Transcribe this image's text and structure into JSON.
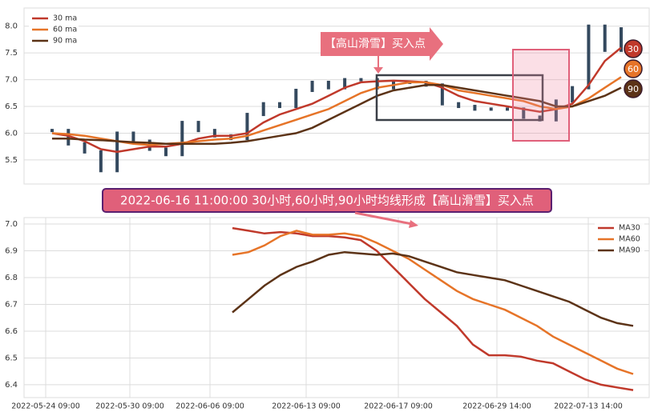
{
  "chart_data": [
    {
      "type": "line",
      "annotation": "【高山滑雪】买入点",
      "end_labels": [
        "30",
        "60",
        "90"
      ],
      "ylim": [
        5.05,
        8.34
      ],
      "yticks": [
        {
          "value": 8,
          "label": "8.0"
        },
        7.5,
        {
          "value": 7,
          "label": "7.0"
        },
        6.5,
        {
          "value": 6,
          "label": "6.0"
        },
        5.5
      ],
      "grid": true,
      "legend": "upper left",
      "price_color": "#34495e",
      "price": [
        6.05,
        5.8,
        5.65,
        5.3,
        6.0,
        5.85,
        5.7,
        5.6,
        6.2,
        6.05,
        5.95,
        5.9,
        6.35,
        6.55,
        6.5,
        6.8,
        6.95,
        6.85,
        7.0,
        7.0,
        6.85,
        6.95,
        6.95,
        6.9,
        6.55,
        6.5,
        6.45,
        6.45,
        6.45,
        6.3,
        6.25,
        6.6,
        6.85,
        8.0,
        7.55,
        7.95
      ],
      "series": [
        {
          "name": "30 ma",
          "color": "#c0392b",
          "values": [
            6.0,
            5.95,
            5.85,
            5.7,
            5.65,
            5.7,
            5.75,
            5.75,
            5.8,
            5.9,
            5.95,
            5.95,
            6.0,
            6.2,
            6.35,
            6.45,
            6.55,
            6.7,
            6.85,
            6.95,
            6.97,
            6.98,
            6.97,
            6.95,
            6.85,
            6.7,
            6.6,
            6.55,
            6.5,
            6.45,
            6.4,
            6.45,
            6.55,
            6.9,
            7.35,
            7.6
          ]
        },
        {
          "name": "60 ma",
          "color": "#e67428",
          "values": [
            6.0,
            5.98,
            5.95,
            5.9,
            5.85,
            5.8,
            5.78,
            5.8,
            5.82,
            5.85,
            5.88,
            5.9,
            5.95,
            6.05,
            6.15,
            6.25,
            6.35,
            6.45,
            6.6,
            6.75,
            6.85,
            6.9,
            6.95,
            6.95,
            6.9,
            6.8,
            6.75,
            6.7,
            6.65,
            6.6,
            6.5,
            6.45,
            6.5,
            6.65,
            6.85,
            7.05
          ]
        },
        {
          "name": "90 ma",
          "color": "#5c3317",
          "values": [
            5.9,
            5.9,
            5.88,
            5.87,
            5.85,
            5.83,
            5.82,
            5.8,
            5.8,
            5.8,
            5.8,
            5.82,
            5.85,
            5.9,
            5.95,
            6.0,
            6.1,
            6.25,
            6.4,
            6.55,
            6.7,
            6.8,
            6.85,
            6.9,
            6.9,
            6.85,
            6.8,
            6.75,
            6.7,
            6.65,
            6.6,
            6.5,
            6.5,
            6.6,
            6.7,
            6.85
          ]
        }
      ]
    },
    {
      "type": "line",
      "title": "2022-06-16 11:00:00 30小时,60小时,90小时均线形成【高山滑雪】买入点",
      "xlim": [
        0,
        39
      ],
      "xticks": [
        {
          "value": 1.35,
          "label": "2022-05-24 09:00"
        },
        {
          "value": 6.6,
          "label": "2022-05-30 09:00"
        },
        {
          "value": 11.6,
          "label": "2022-06-06 09:00"
        },
        {
          "value": 17.6,
          "label": "2022-06-13 09:00"
        },
        {
          "value": 23.35,
          "label": "2022-06-17 09:00"
        },
        {
          "value": 29.5,
          "label": "2022-06-29 14:00"
        },
        {
          "value": 35.2,
          "label": "2022-07-13 14:00"
        }
      ],
      "ylim": [
        6.352,
        7.024
      ],
      "yticks": [
        {
          "value": 7,
          "label": "7.0"
        },
        6.9,
        6.8,
        6.7,
        6.6,
        6.5,
        6.4
      ],
      "grid": true,
      "legend": "upper right",
      "x": [
        13,
        14,
        15,
        16,
        17,
        18,
        19,
        20,
        21,
        22,
        23,
        24,
        25,
        26,
        27,
        28,
        29,
        30,
        31,
        32,
        33,
        34,
        35,
        36,
        37,
        38
      ],
      "series": [
        {
          "name": "MA30",
          "color": "#c0392b",
          "values": [
            6.985,
            6.975,
            6.965,
            6.97,
            6.965,
            6.955,
            6.955,
            6.95,
            6.94,
            6.9,
            6.84,
            6.78,
            6.72,
            6.67,
            6.62,
            6.55,
            6.51,
            6.51,
            6.505,
            6.49,
            6.48,
            6.45,
            6.42,
            6.4,
            6.39,
            6.38
          ]
        },
        {
          "name": "MA60",
          "color": "#e67428",
          "values": [
            6.885,
            6.895,
            6.92,
            6.955,
            6.975,
            6.96,
            6.96,
            6.965,
            6.955,
            6.93,
            6.9,
            6.87,
            6.83,
            6.79,
            6.75,
            6.72,
            6.7,
            6.68,
            6.65,
            6.62,
            6.58,
            6.55,
            6.52,
            6.49,
            6.46,
            6.44
          ]
        },
        {
          "name": "MA90",
          "color": "#5c3317",
          "values": [
            6.67,
            6.72,
            6.77,
            6.81,
            6.84,
            6.86,
            6.885,
            6.895,
            6.89,
            6.885,
            6.89,
            6.88,
            6.86,
            6.84,
            6.82,
            6.81,
            6.8,
            6.79,
            6.77,
            6.75,
            6.73,
            6.71,
            6.68,
            6.65,
            6.63,
            6.62
          ]
        }
      ]
    }
  ]
}
